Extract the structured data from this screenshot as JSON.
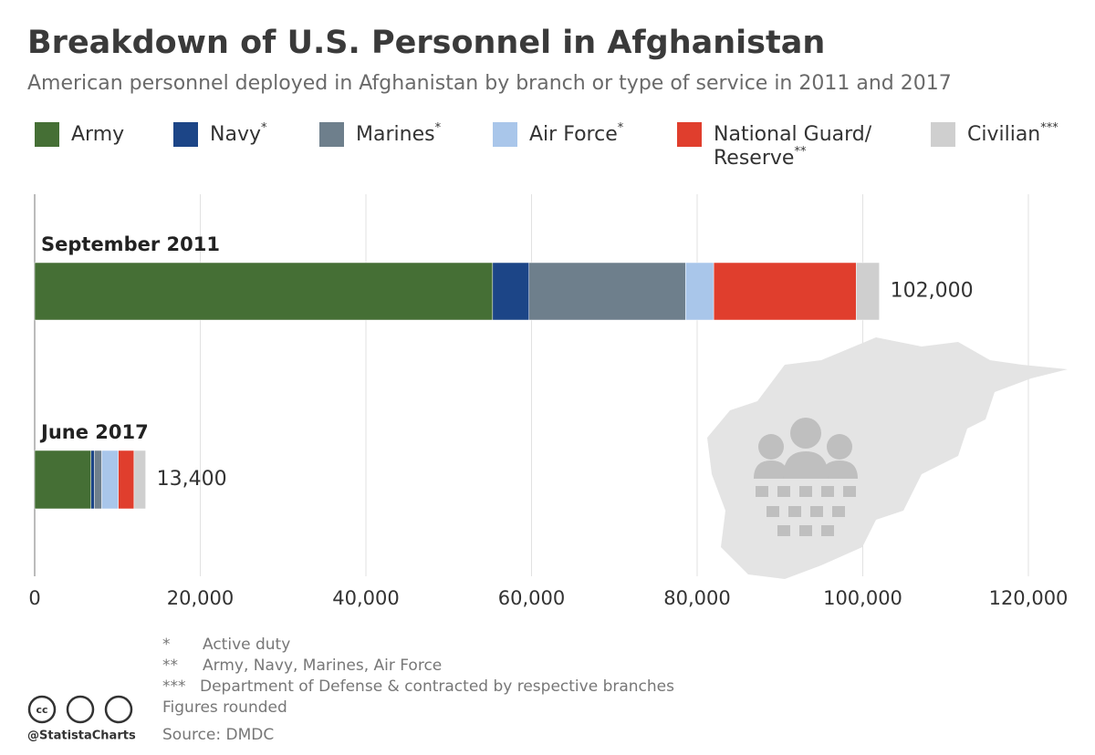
{
  "chart_data": {
    "type": "stacked_barh",
    "title": "Breakdown of U.S. Personnel in Afghanistan",
    "subtitle": "American personnel deployed in Afghanistan by branch or type of service in 2011 and 2017",
    "categories": [
      "September 2011",
      "June 2017"
    ],
    "series": [
      {
        "name": "Army",
        "color": "#456f35",
        "values": [
          55300,
          6800
        ]
      },
      {
        "name": "Navy",
        "note": "*",
        "color": "#1c4587",
        "values": [
          4400,
          400
        ]
      },
      {
        "name": "Marines",
        "note": "*",
        "color": "#6e7f8c",
        "values": [
          18900,
          900
        ]
      },
      {
        "name": "Air Force",
        "note": "*",
        "color": "#a9c6ea",
        "values": [
          3400,
          2000
        ]
      },
      {
        "name": "National Guard/ Reserve",
        "note": "**",
        "color": "#e03e2d",
        "values": [
          17200,
          1900
        ]
      },
      {
        "name": "Civilian",
        "note": "***",
        "color": "#cfcfcf",
        "values": [
          2800,
          1400
        ]
      }
    ],
    "totals": [
      102000,
      13400
    ],
    "total_labels": [
      "102,000",
      "13,400"
    ],
    "xlim": [
      0,
      120000
    ],
    "xticks": [
      0,
      {
        "value": 20000,
        "label": "20,000"
      },
      {
        "value": 40000,
        "label": "40,000"
      },
      {
        "value": 60000,
        "label": "60,000"
      },
      {
        "value": 80000,
        "label": "80,000"
      },
      {
        "value": 100000,
        "label": "100,000"
      },
      {
        "value": 120000,
        "label": "120,000"
      }
    ],
    "grid": true,
    "footnotes": [
      {
        "marker": "*",
        "text": "Active duty"
      },
      {
        "marker": "**",
        "text": "Army, Navy, Marines, Air Force"
      },
      {
        "marker": "***",
        "text": "Department of Defense & contracted by respective branches"
      }
    ],
    "note": "Figures rounded",
    "source": "Source: DMDC",
    "credit": "@StatistaCharts"
  }
}
